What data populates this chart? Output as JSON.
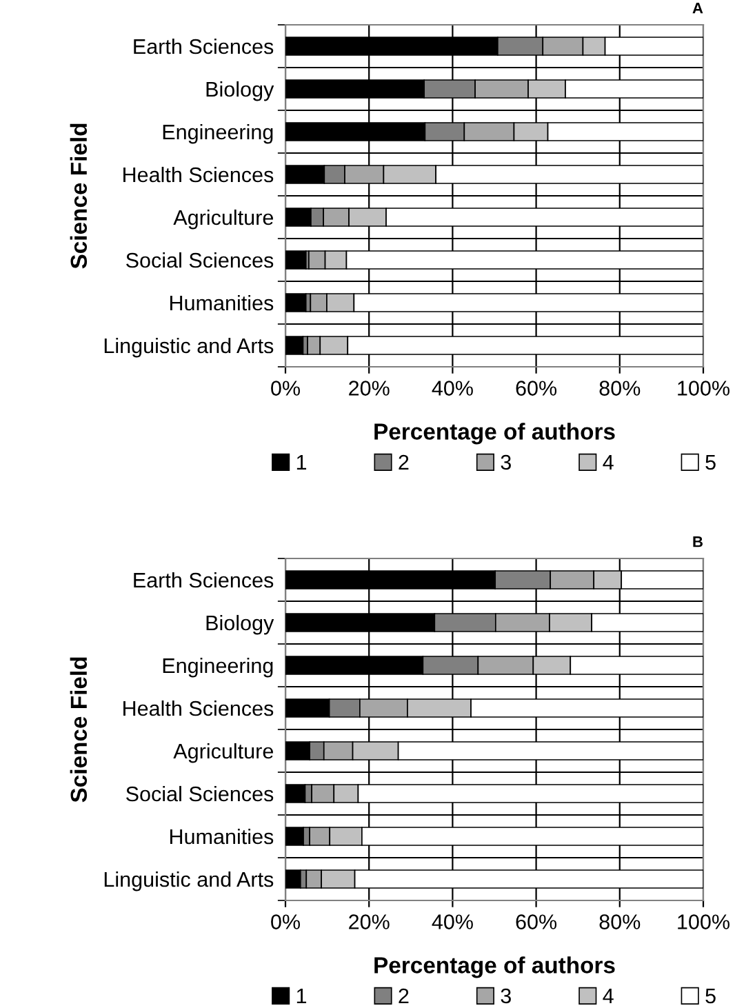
{
  "chart_data": [
    {
      "type": "bar",
      "orientation": "horizontal",
      "stacked": true,
      "title": "A",
      "ylabel": "Science Field",
      "xlabel": "Percentage of authors",
      "categories": [
        "Earth Sciences",
        "Biology",
        "Engineering",
        "Health Sciences",
        "Agriculture",
        "Social Sciences",
        "Humanities",
        "Linguistic and Arts"
      ],
      "series": [
        {
          "name": "1",
          "color": "#000000",
          "values": [
            50.8,
            33.2,
            33.4,
            9.3,
            6.1,
            4.9,
            4.9,
            4.2
          ]
        },
        {
          "name": "2",
          "color": "#808080",
          "values": [
            10.8,
            12.2,
            9.4,
            4.9,
            3.0,
            0.7,
            1.1,
            1.1
          ]
        },
        {
          "name": "3",
          "color": "#a6a6a6",
          "values": [
            9.6,
            12.7,
            11.9,
            9.3,
            6.1,
            3.9,
            3.9,
            3.0
          ]
        },
        {
          "name": "4",
          "color": "#c0c0c0",
          "values": [
            5.3,
            8.9,
            8.1,
            12.5,
            8.9,
            5.1,
            6.5,
            6.6
          ]
        },
        {
          "name": "5",
          "color": "#ffffff",
          "values": [
            23.5,
            33.0,
            37.2,
            64.0,
            75.9,
            85.4,
            83.6,
            85.1
          ]
        }
      ],
      "xlim": [
        0,
        100
      ],
      "xticks": [
        {
          "value": 0,
          "label": "0%"
        },
        {
          "value": 20,
          "label": "20%"
        },
        {
          "value": 40,
          "label": "40%"
        },
        {
          "value": 60,
          "label": "60%"
        },
        {
          "value": 80,
          "label": "80%"
        },
        {
          "value": 100,
          "label": "100%"
        }
      ],
      "grid": true,
      "legend": "bottom"
    },
    {
      "type": "bar",
      "orientation": "horizontal",
      "stacked": true,
      "title": "B",
      "ylabel": "Science Field",
      "xlabel": "Percentage of authors",
      "categories": [
        "Earth Sciences",
        "Biology",
        "Engineering",
        "Health Sciences",
        "Agriculture",
        "Social Sciences",
        "Humanities",
        "Linguistic and Arts"
      ],
      "series": [
        {
          "name": "1",
          "color": "#000000",
          "values": [
            50.2,
            35.7,
            32.9,
            10.5,
            5.8,
            4.7,
            4.3,
            3.6
          ]
        },
        {
          "name": "2",
          "color": "#808080",
          "values": [
            13.2,
            14.6,
            13.2,
            7.3,
            3.4,
            1.6,
            1.5,
            1.4
          ]
        },
        {
          "name": "3",
          "color": "#a6a6a6",
          "values": [
            10.4,
            12.9,
            13.2,
            11.4,
            6.9,
            5.3,
            4.8,
            3.6
          ]
        },
        {
          "name": "4",
          "color": "#c0c0c0",
          "values": [
            6.6,
            10.1,
            8.9,
            15.2,
            10.9,
            5.8,
            7.7,
            8.0
          ]
        },
        {
          "name": "5",
          "color": "#ffffff",
          "values": [
            19.6,
            26.7,
            31.8,
            55.6,
            73.0,
            82.6,
            81.7,
            83.4
          ]
        }
      ],
      "xlim": [
        0,
        100
      ],
      "xticks": [
        {
          "value": 0,
          "label": "0%"
        },
        {
          "value": 20,
          "label": "20%"
        },
        {
          "value": 40,
          "label": "40%"
        },
        {
          "value": 60,
          "label": "60%"
        },
        {
          "value": 80,
          "label": "80%"
        },
        {
          "value": 100,
          "label": "100%"
        }
      ],
      "grid": true,
      "legend": "bottom"
    }
  ]
}
